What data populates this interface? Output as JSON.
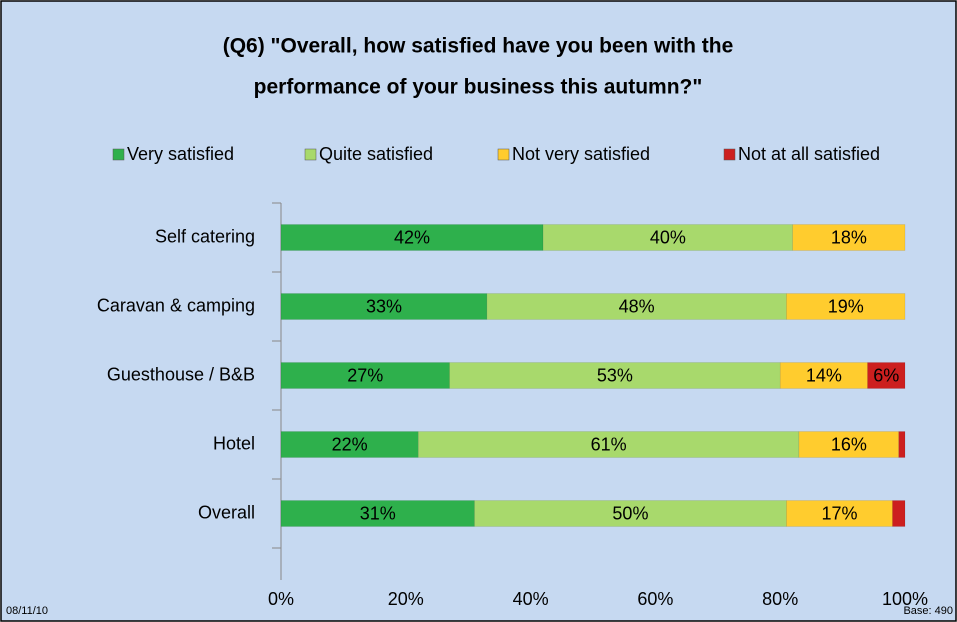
{
  "chart_data": {
    "type": "stacked_bar_horizontal",
    "title": [
      "(Q6) \"Overall, how satisfied have you been with the",
      "performance of your business this autumn?\""
    ],
    "categories": [
      "Self catering",
      "Caravan & camping",
      "Guesthouse / B&B",
      "Hotel",
      "Overall"
    ],
    "series": [
      {
        "name": "Very satisfied",
        "color": "#2eb04c",
        "values": [
          42,
          33,
          27,
          22,
          31
        ],
        "value_labels": [
          "42%",
          "33%",
          "27%",
          "22%",
          "31%"
        ]
      },
      {
        "name": "Quite satisfied",
        "color": "#a8d96c",
        "values": [
          40,
          48,
          53,
          61,
          50
        ],
        "value_labels": [
          "40%",
          "48%",
          "53%",
          "61%",
          "50%"
        ]
      },
      {
        "name": "Not very satisfied",
        "color": "#ffcc2e",
        "values": [
          18,
          19,
          14,
          16,
          17
        ],
        "value_labels": [
          "18%",
          "19%",
          "14%",
          "16%",
          "17%"
        ]
      },
      {
        "name": "Not at all satisfied",
        "color": "#cc1f1f",
        "values": [
          0,
          0,
          6,
          1,
          2
        ],
        "value_labels": [
          null,
          null,
          "6%",
          null,
          null
        ]
      }
    ],
    "xlim": [
      0,
      100
    ],
    "xticks": [
      {
        "value": 0,
        "label": "0%"
      },
      {
        "value": 20,
        "label": "20%"
      },
      {
        "value": 40,
        "label": "40%"
      },
      {
        "value": 60,
        "label": "60%"
      },
      {
        "value": 80,
        "label": "80%"
      },
      {
        "value": 100,
        "label": "100%"
      }
    ],
    "legend": "top",
    "date": "08/11/10",
    "base_note": "Base: 490"
  }
}
